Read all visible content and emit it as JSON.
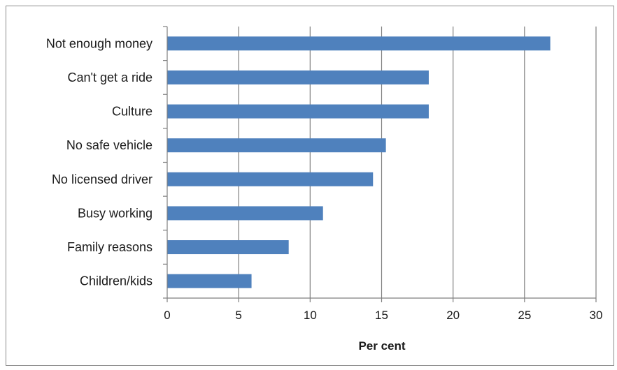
{
  "chart_data": {
    "type": "bar",
    "orientation": "horizontal",
    "categories": [
      "Not enough money",
      "Can't get a ride",
      "Culture",
      "No safe vehicle",
      "No licensed driver",
      "Busy working",
      "Family reasons",
      "Children/kids"
    ],
    "values": [
      26.8,
      18.3,
      18.3,
      15.3,
      14.4,
      10.9,
      8.5,
      5.9
    ],
    "xlabel": "Per cent",
    "ylabel": "",
    "xlim": [
      0,
      30
    ],
    "xticks": [
      0,
      5,
      10,
      15,
      20,
      25,
      30
    ],
    "grid": "vertical",
    "legend": "none",
    "bar_color": "#4f81bd",
    "grid_color": "#7f7f7f",
    "axis_color": "#7f7f7f"
  }
}
